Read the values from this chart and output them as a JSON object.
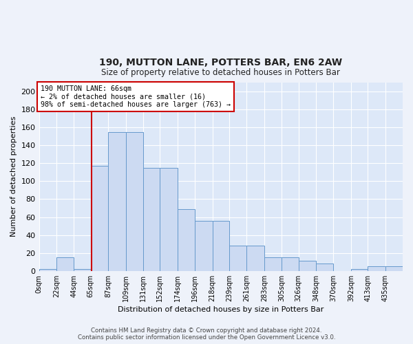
{
  "title": "190, MUTTON LANE, POTTERS BAR, EN6 2AW",
  "subtitle": "Size of property relative to detached houses in Potters Bar",
  "xlabel": "Distribution of detached houses by size in Potters Bar",
  "ylabel": "Number of detached properties",
  "bin_labels": [
    "0sqm",
    "22sqm",
    "44sqm",
    "65sqm",
    "87sqm",
    "109sqm",
    "131sqm",
    "152sqm",
    "174sqm",
    "196sqm",
    "218sqm",
    "239sqm",
    "261sqm",
    "283sqm",
    "305sqm",
    "326sqm",
    "348sqm",
    "370sqm",
    "392sqm",
    "413sqm",
    "435sqm"
  ],
  "bar_values": [
    2,
    15,
    2,
    117,
    155,
    155,
    115,
    115,
    69,
    56,
    56,
    28,
    28,
    15,
    15,
    11,
    8,
    0,
    2,
    5,
    5
  ],
  "bin_edges": [
    0,
    22,
    44,
    65,
    87,
    109,
    131,
    152,
    174,
    196,
    218,
    239,
    261,
    283,
    305,
    326,
    348,
    370,
    392,
    413,
    435,
    457
  ],
  "bar_color": "#ccdaf2",
  "bar_edge_color": "#6699cc",
  "red_line_x": 66,
  "annotation_text": "190 MUTTON LANE: 66sqm\n← 2% of detached houses are smaller (16)\n98% of semi-detached houses are larger (763) →",
  "annotation_box_color": "#ffffff",
  "annotation_box_edge": "#cc0000",
  "ylim": [
    0,
    210
  ],
  "yticks": [
    0,
    20,
    40,
    60,
    80,
    100,
    120,
    140,
    160,
    180,
    200
  ],
  "fig_bg_color": "#eef2fa",
  "plot_bg_color": "#dde8f8",
  "grid_color": "#ffffff",
  "title_color": "#222222",
  "footer_line1": "Contains HM Land Registry data © Crown copyright and database right 2024.",
  "footer_line2": "Contains public sector information licensed under the Open Government Licence v3.0."
}
